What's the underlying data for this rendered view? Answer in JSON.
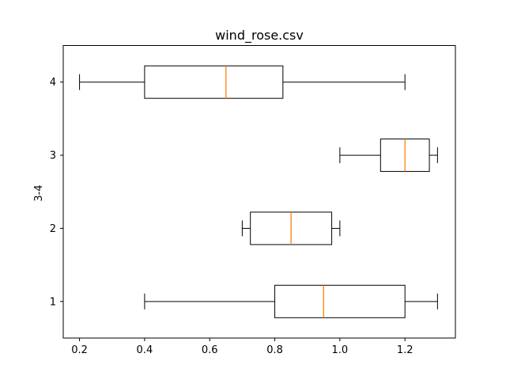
{
  "chart_data": {
    "type": "boxplot",
    "orientation": "horizontal",
    "title": "wind_rose.csv",
    "xlabel": "",
    "ylabel": "3-4",
    "xlim": [
      0.15,
      1.355
    ],
    "ylim": [
      0.5,
      4.5
    ],
    "x_ticks": [
      "0.2",
      "0.4",
      "0.6",
      "0.8",
      "1.0",
      "1.2"
    ],
    "y_ticks": [
      "1",
      "2",
      "3",
      "4"
    ],
    "grid": false,
    "colors": {
      "box": "#000000",
      "median": "#ff7f0e"
    },
    "boxes": [
      {
        "position": 1,
        "whislo": 0.4,
        "q1": 0.8,
        "med": 0.95,
        "q3": 1.2,
        "whishi": 1.3
      },
      {
        "position": 2,
        "whislo": 0.7,
        "q1": 0.725,
        "med": 0.85,
        "q3": 0.975,
        "whishi": 1.0
      },
      {
        "position": 3,
        "whislo": 1.0,
        "q1": 1.125,
        "med": 1.2,
        "q3": 1.275,
        "whishi": 1.3
      },
      {
        "position": 4,
        "whislo": 0.2,
        "q1": 0.4,
        "med": 0.65,
        "q3": 0.825,
        "whishi": 1.2
      }
    ]
  }
}
